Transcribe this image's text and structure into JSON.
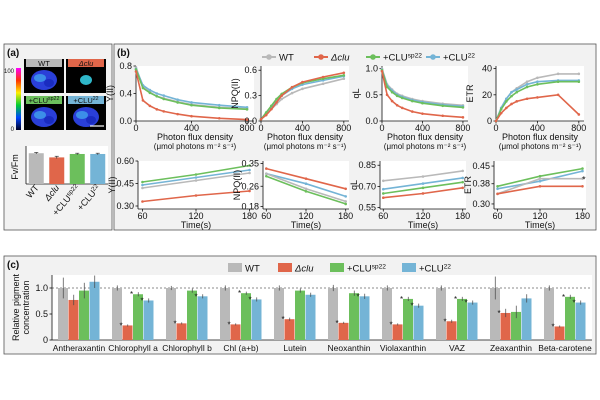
{
  "colors": {
    "WT": "#b9b9b9",
    "dclu": "#e0664a",
    "CLUsp22": "#6cbf5c",
    "CLU22": "#74b4d6",
    "panel_bg": "#f2f2f2",
    "panel_border": "#555555"
  },
  "panel_a": {
    "label": "(a)",
    "images": [
      {
        "label": "WT",
        "label_bg": "#b9b9b9"
      },
      {
        "label": "Δclu",
        "label_bg": "#e0664a"
      },
      {
        "label": "+CLU",
        "sup": "sp22",
        "label_bg": "#6cbf5c"
      },
      {
        "label": "+CLU",
        "sup": "22",
        "label_bg": "#74b4d6"
      }
    ],
    "colorbar": {
      "ticks": [
        "100",
        "0"
      ]
    }
  },
  "panel_b": {
    "label": "(b)",
    "legend": [
      {
        "key": "WT",
        "text": "WT",
        "sup": ""
      },
      {
        "key": "dclu",
        "text": "Δclu",
        "sup": ""
      },
      {
        "key": "CLUsp22",
        "text": "+CLU",
        "sup": "sp22"
      },
      {
        "key": "CLU22",
        "text": "+CLU",
        "sup": "22"
      }
    ]
  },
  "panel_c": {
    "label": "(c)",
    "legend": [
      {
        "key": "WT",
        "text": "WT",
        "sup": ""
      },
      {
        "key": "dclu",
        "text": "Δclu",
        "sup": ""
      },
      {
        "key": "CLUsp22",
        "text": "+CLU",
        "sup": "sp22"
      },
      {
        "key": "CLU22",
        "text": "+CLU",
        "sup": "22"
      }
    ]
  },
  "chart_data": [
    {
      "id": "a-bar",
      "type": "bar",
      "ylabel": "Fv/Fm",
      "categories": [
        "WT",
        "Δclu",
        "+CLU",
        "+CLU"
      ],
      "category_sups": [
        "",
        "",
        "sp22",
        "22"
      ],
      "color_keys": [
        "WT",
        "dclu",
        "CLUsp22",
        "CLU22"
      ],
      "values": [
        0.81,
        0.7,
        0.79,
        0.79
      ],
      "errors": [
        0.02,
        0.03,
        0.02,
        0.02
      ],
      "ylim": [
        0,
        1
      ],
      "yticks": []
    },
    {
      "id": "b1",
      "type": "line",
      "ylabel": "Y(II)",
      "xlabel": "Photon flux density",
      "xlabel2": "(μmol photons m⁻² s⁻¹)",
      "xlim": [
        0,
        850
      ],
      "ylim": [
        0,
        0.8
      ],
      "xticks": [
        0,
        400,
        800
      ],
      "yticks": [
        0.0,
        0.4,
        0.8
      ],
      "ytick_labels": [
        "0.0",
        "0.4",
        "0.8"
      ],
      "series": [
        {
          "key": "WT",
          "x": [
            0,
            50,
            100,
            150,
            200,
            300,
            400,
            600,
            800
          ],
          "y": [
            0.78,
            0.5,
            0.42,
            0.36,
            0.33,
            0.28,
            0.24,
            0.2,
            0.18
          ]
        },
        {
          "key": "CLU22",
          "x": [
            0,
            50,
            100,
            150,
            200,
            300,
            400,
            600,
            800
          ],
          "y": [
            0.76,
            0.52,
            0.45,
            0.4,
            0.37,
            0.31,
            0.27,
            0.23,
            0.2
          ]
        },
        {
          "key": "CLUsp22",
          "x": [
            0,
            50,
            100,
            150,
            200,
            300,
            400,
            600,
            800
          ],
          "y": [
            0.75,
            0.48,
            0.41,
            0.36,
            0.32,
            0.27,
            0.23,
            0.19,
            0.17
          ]
        },
        {
          "key": "dclu",
          "x": [
            0,
            50,
            100,
            150,
            200,
            300,
            400,
            600,
            800
          ],
          "y": [
            0.72,
            0.3,
            0.22,
            0.17,
            0.14,
            0.1,
            0.07,
            0.04,
            0.02
          ]
        }
      ]
    },
    {
      "id": "b2",
      "type": "line",
      "ylabel": "NPQ(II)",
      "xlabel": "Photon flux density",
      "xlabel2": "(μmol photons m⁻² s⁻¹)",
      "xlim": [
        0,
        850
      ],
      "ylim": [
        0,
        0.65
      ],
      "xticks": [
        0,
        400,
        800
      ],
      "yticks": [
        0.0,
        0.3,
        0.6
      ],
      "ytick_labels": [
        "0.0",
        "0.3",
        "0.6"
      ],
      "series": [
        {
          "key": "WT",
          "x": [
            0,
            50,
            100,
            150,
            200,
            300,
            400,
            600,
            800
          ],
          "y": [
            0.02,
            0.08,
            0.14,
            0.2,
            0.26,
            0.33,
            0.38,
            0.44,
            0.5
          ]
        },
        {
          "key": "CLU22",
          "x": [
            0,
            50,
            100,
            150,
            200,
            300,
            400,
            600,
            800
          ],
          "y": [
            0.02,
            0.1,
            0.17,
            0.24,
            0.3,
            0.38,
            0.43,
            0.48,
            0.53
          ]
        },
        {
          "key": "CLUsp22",
          "x": [
            0,
            50,
            100,
            150,
            200,
            300,
            400,
            600,
            800
          ],
          "y": [
            0.02,
            0.1,
            0.18,
            0.26,
            0.32,
            0.4,
            0.45,
            0.5,
            0.54
          ]
        },
        {
          "key": "dclu",
          "x": [
            0,
            50,
            100,
            150,
            200,
            300,
            400,
            600,
            800
          ],
          "y": [
            0.02,
            0.07,
            0.14,
            0.22,
            0.3,
            0.4,
            0.46,
            0.52,
            0.57
          ]
        }
      ]
    },
    {
      "id": "b3",
      "type": "line",
      "ylabel": "qL",
      "xlabel": "Photon flux density",
      "xlabel2": "(μmol photons m⁻² s⁻¹)",
      "xlim": [
        0,
        850
      ],
      "ylim": [
        0,
        1.05
      ],
      "xticks": [
        0,
        400,
        800
      ],
      "yticks": [
        0.0,
        0.5,
        1.0
      ],
      "ytick_labels": [
        "0.0",
        "0.5",
        "1.0"
      ],
      "series": [
        {
          "key": "WT",
          "x": [
            0,
            50,
            100,
            150,
            200,
            300,
            400,
            600,
            800
          ],
          "y": [
            1.0,
            0.7,
            0.6,
            0.52,
            0.48,
            0.42,
            0.38,
            0.33,
            0.3
          ]
        },
        {
          "key": "CLU22",
          "x": [
            0,
            50,
            100,
            150,
            200,
            300,
            400,
            600,
            800
          ],
          "y": [
            0.98,
            0.68,
            0.58,
            0.5,
            0.46,
            0.4,
            0.36,
            0.31,
            0.28
          ]
        },
        {
          "key": "CLUsp22",
          "x": [
            0,
            50,
            100,
            150,
            200,
            300,
            400,
            600,
            800
          ],
          "y": [
            0.97,
            0.65,
            0.55,
            0.48,
            0.44,
            0.38,
            0.34,
            0.29,
            0.26
          ]
        },
        {
          "key": "dclu",
          "x": [
            0,
            50,
            100,
            150,
            200,
            300,
            400,
            600,
            800
          ],
          "y": [
            0.95,
            0.5,
            0.38,
            0.3,
            0.25,
            0.18,
            0.14,
            0.1,
            0.07
          ]
        }
      ]
    },
    {
      "id": "b4",
      "type": "line",
      "ylabel": "ETR",
      "xlabel": "Photon flux density",
      "xlabel2": "(μmol photons m⁻² s⁻¹)",
      "xlim": [
        0,
        850
      ],
      "ylim": [
        0,
        42
      ],
      "xticks": [
        0,
        400,
        800
      ],
      "yticks": [
        0,
        20,
        40
      ],
      "ytick_labels": [
        "0",
        "20",
        "40"
      ],
      "series": [
        {
          "key": "WT",
          "x": [
            0,
            50,
            100,
            150,
            200,
            300,
            400,
            600,
            800
          ],
          "y": [
            0,
            10,
            17,
            22,
            25,
            30,
            33,
            36,
            36
          ]
        },
        {
          "key": "CLU22",
          "x": [
            0,
            50,
            100,
            150,
            200,
            300,
            400,
            600,
            800
          ],
          "y": [
            0,
            10,
            17,
            22,
            24,
            28,
            30,
            31,
            31
          ]
        },
        {
          "key": "CLUsp22",
          "x": [
            0,
            50,
            100,
            150,
            200,
            300,
            400,
            600,
            800
          ],
          "y": [
            0,
            9,
            15,
            19,
            22,
            26,
            28,
            30,
            30
          ]
        },
        {
          "key": "dclu",
          "x": [
            0,
            50,
            100,
            150,
            200,
            300,
            400,
            600,
            800
          ],
          "y": [
            0,
            6,
            10,
            13,
            15,
            17,
            18,
            20,
            5
          ]
        }
      ]
    },
    {
      "id": "b5",
      "type": "line",
      "ylabel": "Y(II)",
      "xlabel": "Time(s)",
      "xlim": [
        55,
        185
      ],
      "ylim": [
        0.28,
        0.6
      ],
      "xticks": [
        60,
        120,
        180
      ],
      "yticks": [
        0.3,
        0.45,
        0.6
      ],
      "ytick_labels": [
        "0.30",
        "0.45",
        "0.60"
      ],
      "series": [
        {
          "key": "CLUsp22",
          "x": [
            60,
            120,
            180
          ],
          "y": [
            0.46,
            0.51,
            0.57
          ]
        },
        {
          "key": "CLU22",
          "x": [
            60,
            120,
            180
          ],
          "y": [
            0.44,
            0.49,
            0.54
          ]
        },
        {
          "key": "WT",
          "x": [
            60,
            120,
            180
          ],
          "y": [
            0.42,
            0.47,
            0.52
          ]
        },
        {
          "key": "dclu",
          "x": [
            60,
            120,
            180
          ],
          "y": [
            0.33,
            0.37,
            0.4
          ]
        }
      ]
    },
    {
      "id": "b6",
      "type": "line",
      "ylabel": "NPQ(II)",
      "xlabel": "Time(s)",
      "xlim": [
        55,
        185
      ],
      "ylim": [
        0.17,
        0.36
      ],
      "xticks": [
        60,
        120,
        180
      ],
      "yticks": [
        0.18,
        0.26,
        0.35
      ],
      "ytick_labels": [
        "0.18",
        "0.26",
        "0.35"
      ],
      "series": [
        {
          "key": "dclu",
          "x": [
            60,
            120,
            180
          ],
          "y": [
            0.33,
            0.29,
            0.25
          ]
        },
        {
          "key": "CLU22",
          "x": [
            60,
            120,
            180
          ],
          "y": [
            0.31,
            0.27,
            0.22
          ]
        },
        {
          "key": "WT",
          "x": [
            60,
            120,
            180
          ],
          "y": [
            0.31,
            0.25,
            0.2
          ]
        },
        {
          "key": "CLUsp22",
          "x": [
            60,
            120,
            180
          ],
          "y": [
            0.3,
            0.24,
            0.19
          ]
        }
      ]
    },
    {
      "id": "b7",
      "type": "line",
      "ylabel": "qL",
      "xlabel": "Time(s)",
      "xlim": [
        55,
        185
      ],
      "ylim": [
        0.54,
        0.88
      ],
      "xticks": [
        60,
        120,
        180
      ],
      "yticks": [
        0.55,
        0.7,
        0.85
      ],
      "ytick_labels": [
        "0.55",
        "0.70",
        "0.85"
      ],
      "series": [
        {
          "key": "WT",
          "x": [
            60,
            120,
            180
          ],
          "y": [
            0.74,
            0.77,
            0.81
          ]
        },
        {
          "key": "CLU22",
          "x": [
            60,
            120,
            180
          ],
          "y": [
            0.68,
            0.72,
            0.76
          ]
        },
        {
          "key": "CLUsp22",
          "x": [
            60,
            120,
            180
          ],
          "y": [
            0.65,
            0.69,
            0.73
          ]
        },
        {
          "key": "dclu",
          "x": [
            60,
            120,
            180
          ],
          "y": [
            0.62,
            0.65,
            0.69
          ]
        }
      ]
    },
    {
      "id": "b8",
      "type": "line",
      "ylabel": "ETR",
      "xlabel": "Time(s)",
      "xlim": [
        55,
        185
      ],
      "ylim": [
        0.28,
        0.47
      ],
      "xticks": [
        60,
        120,
        180
      ],
      "yticks": [
        0.3,
        0.38,
        0.45
      ],
      "ytick_labels": [
        "0.30",
        "0.38",
        "0.45"
      ],
      "series": [
        {
          "key": "CLUsp22",
          "x": [
            60,
            120,
            180
          ],
          "y": [
            0.37,
            0.41,
            0.44
          ]
        },
        {
          "key": "CLU22",
          "x": [
            60,
            120,
            180
          ],
          "y": [
            0.36,
            0.39,
            0.43
          ]
        },
        {
          "key": "WT",
          "x": [
            60,
            120,
            180
          ],
          "y": [
            0.34,
            0.4,
            0.4
          ]
        },
        {
          "key": "dclu",
          "x": [
            60,
            120,
            180
          ],
          "y": [
            0.34,
            0.37,
            0.37
          ]
        }
      ],
      "annotations": [
        {
          "text": "*",
          "x": 182,
          "y": 0.385
        }
      ]
    },
    {
      "id": "c-bar",
      "type": "bar",
      "ylabel": "Relative pigment",
      "ylabel2": "concentration",
      "categories": [
        "Antheraxantin",
        "Chlorophyll a",
        "Chlorophyll b",
        "Chl (a+b)",
        "Lutein",
        "Neoxanthin",
        "Violaxanthin",
        "VAZ",
        "Zeaxanthin",
        "Beta-carotene"
      ],
      "ylim": [
        0,
        1.25
      ],
      "yticks": [
        0,
        0.5,
        1.0
      ],
      "ytick_labels": [
        "0",
        "0.5",
        "1.0"
      ],
      "reference_line": 1.0,
      "series": [
        {
          "key": "WT",
          "values": [
            1.0,
            1.0,
            1.0,
            1.0,
            1.0,
            1.0,
            1.0,
            1.0,
            1.0,
            1.0
          ],
          "errors": [
            0.2,
            0.05,
            0.04,
            0.05,
            0.05,
            0.06,
            0.05,
            0.05,
            0.22,
            0.05
          ]
        },
        {
          "key": "dclu",
          "values": [
            0.77,
            0.28,
            0.32,
            0.3,
            0.4,
            0.33,
            0.3,
            0.36,
            0.52,
            0.26
          ],
          "errors": [
            0.1,
            0.02,
            0.02,
            0.02,
            0.03,
            0.02,
            0.02,
            0.03,
            0.08,
            0.02
          ]
        },
        {
          "key": "CLUsp22",
          "values": [
            0.95,
            0.88,
            0.95,
            0.9,
            0.95,
            0.9,
            0.79,
            0.79,
            0.54,
            0.83
          ],
          "errors": [
            0.15,
            0.04,
            0.04,
            0.03,
            0.04,
            0.05,
            0.04,
            0.04,
            0.12,
            0.04
          ]
        },
        {
          "key": "CLU22",
          "values": [
            1.12,
            0.76,
            0.84,
            0.78,
            0.87,
            0.84,
            0.66,
            0.72,
            0.8,
            0.72
          ],
          "errors": [
            0.12,
            0.04,
            0.04,
            0.04,
            0.04,
            0.05,
            0.04,
            0.04,
            0.08,
            0.04
          ]
        }
      ],
      "significance": {
        "dclu": [
          "",
          "*",
          "*",
          "*",
          "*",
          "*",
          "*",
          "*",
          "*",
          "*"
        ],
        "CLUsp22": [
          "",
          "*",
          "",
          "*",
          "",
          "",
          "*",
          "*",
          "",
          "*"
        ],
        "CLU22": [
          "",
          "*",
          "*",
          "*",
          "",
          "*",
          "*",
          "*",
          "",
          "*"
        ]
      }
    }
  ]
}
